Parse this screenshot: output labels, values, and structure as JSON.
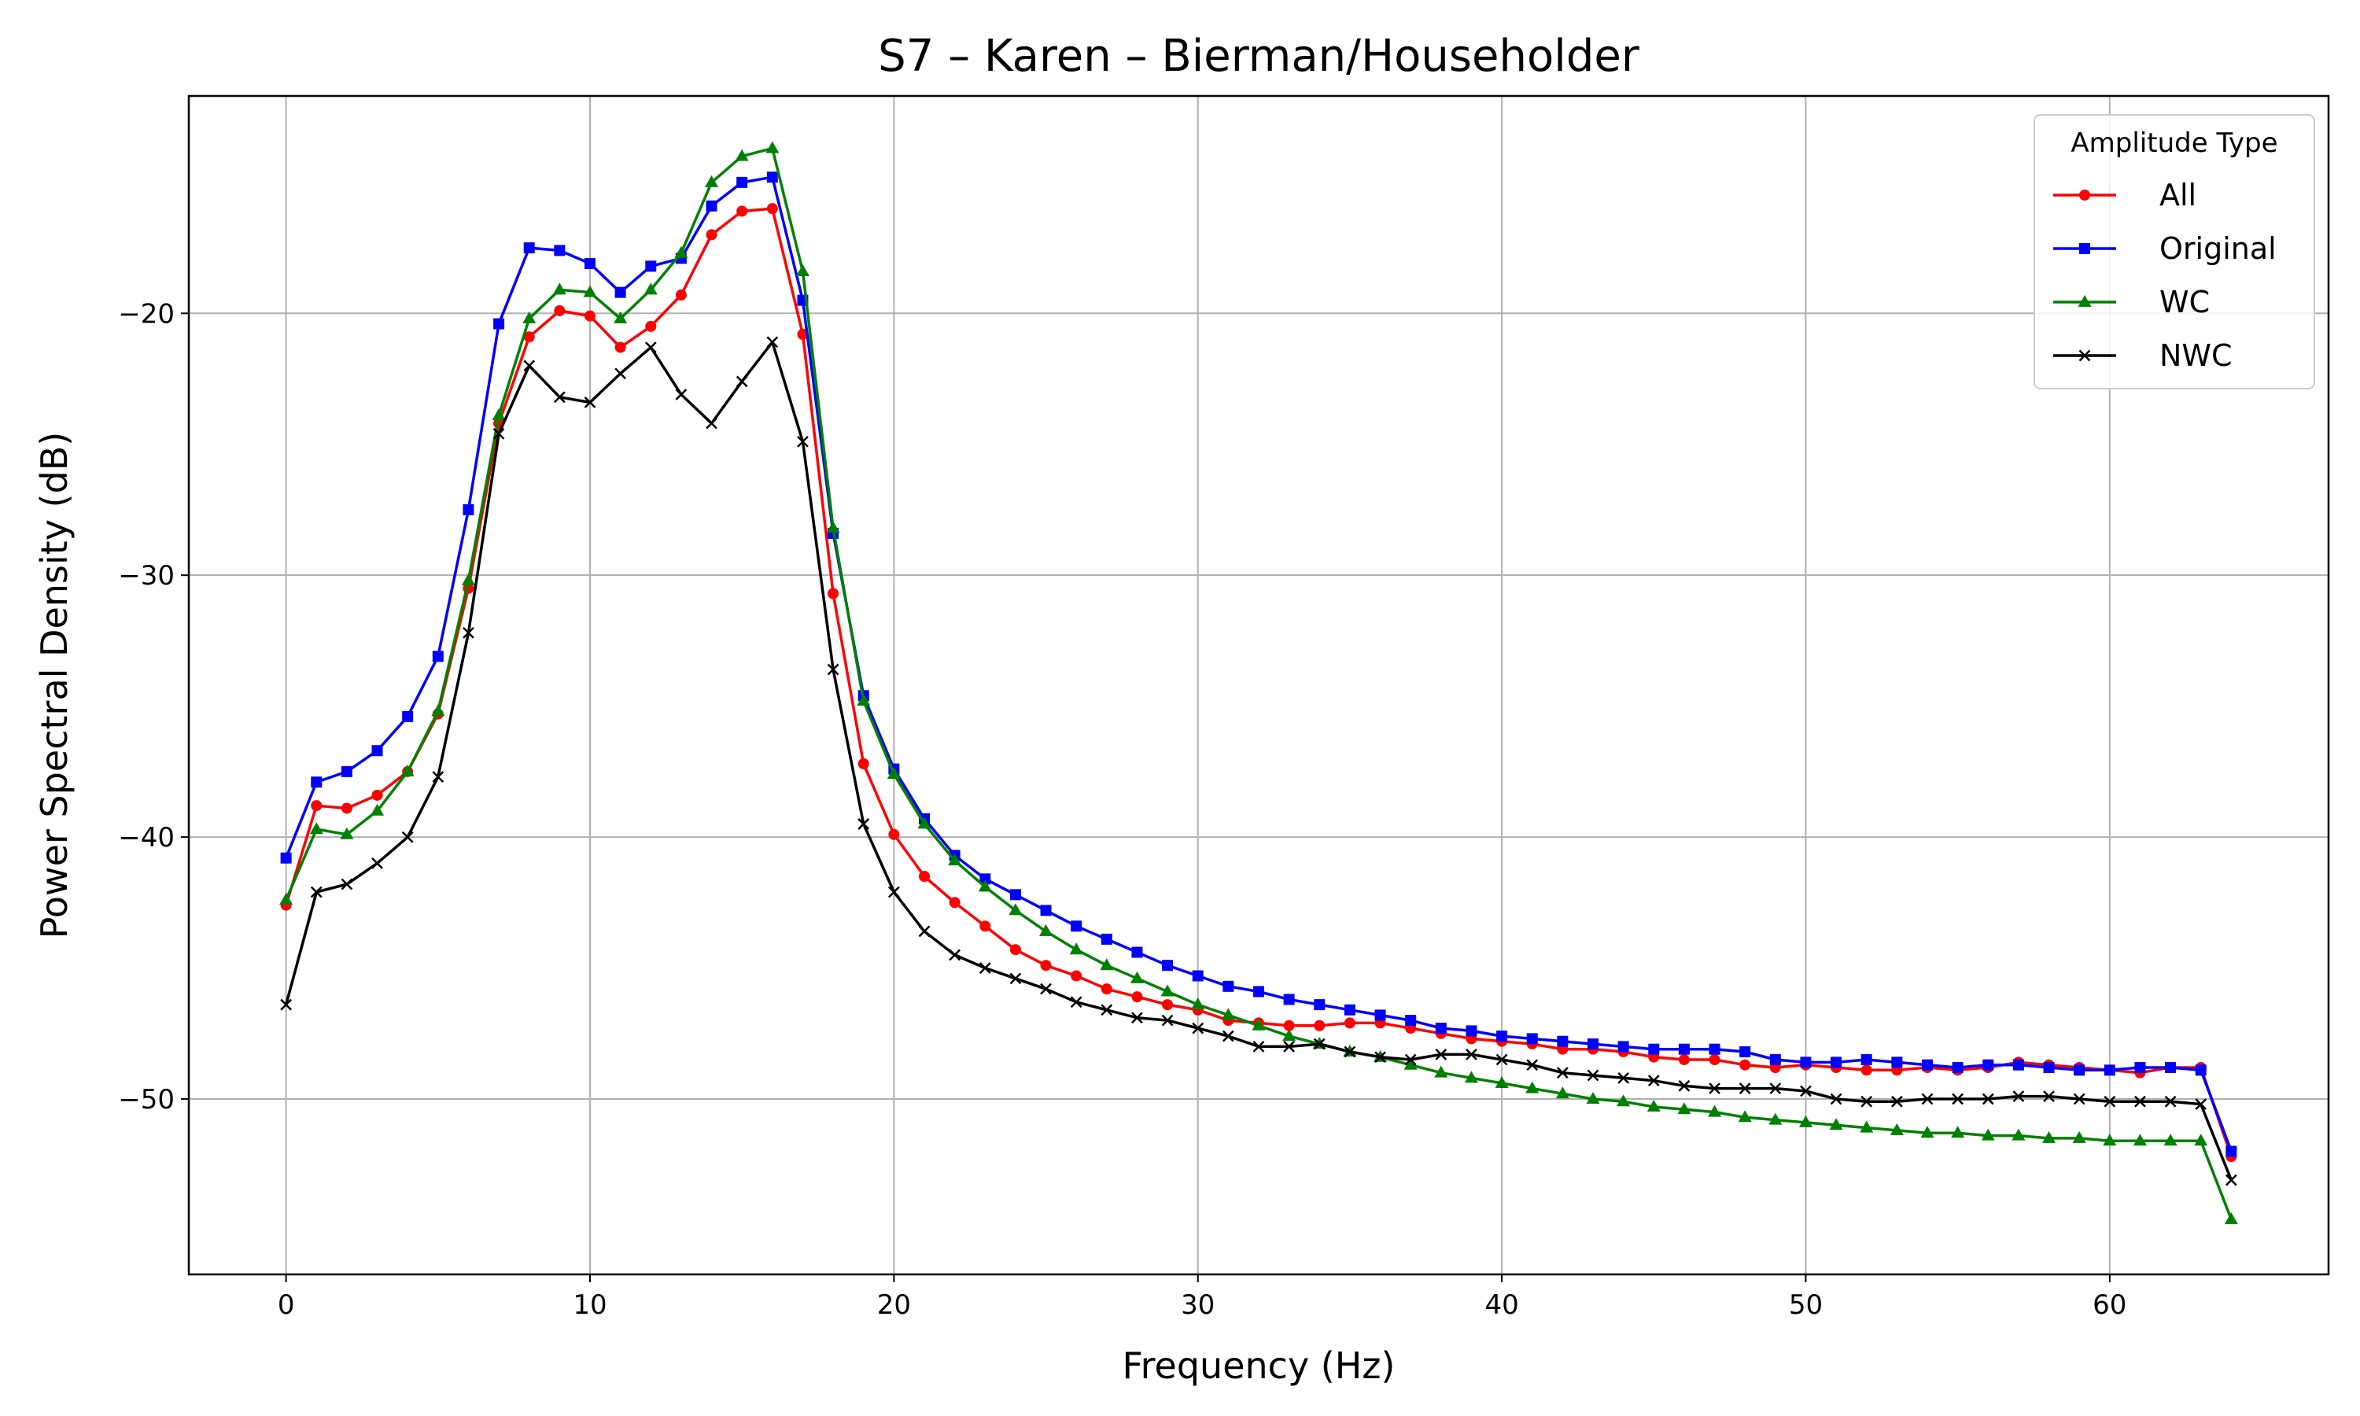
{
  "chart_data": {
    "type": "line",
    "title": "S7 – Karen – Bierman/Householder",
    "xlabel": "Frequency (Hz)",
    "ylabel": "Power Spectral Density (dB)",
    "xlim": [
      -3.2,
      67.2
    ],
    "ylim": [
      -56.7,
      -11.7
    ],
    "xticks": [
      0,
      10,
      20,
      30,
      40,
      50,
      60
    ],
    "yticks": [
      -50,
      -40,
      -30,
      -20
    ],
    "xtick_labels": [
      "0",
      "10",
      "20",
      "30",
      "40",
      "50",
      "60"
    ],
    "ytick_labels": [
      "−50",
      "−40",
      "−30",
      "−20"
    ],
    "grid": true,
    "legend": {
      "title": "Amplitude Type",
      "position": "top-right"
    },
    "x": [
      0,
      1,
      2,
      3,
      4,
      5,
      6,
      7,
      8,
      9,
      10,
      11,
      12,
      13,
      14,
      15,
      16,
      17,
      18,
      19,
      20,
      21,
      22,
      23,
      24,
      25,
      26,
      27,
      28,
      29,
      30,
      31,
      32,
      33,
      34,
      35,
      36,
      37,
      38,
      39,
      40,
      41,
      42,
      43,
      44,
      45,
      46,
      47,
      48,
      49,
      50,
      51,
      52,
      53,
      54,
      55,
      56,
      57,
      58,
      59,
      60,
      61,
      62,
      63,
      64
    ],
    "series": [
      {
        "name": "All",
        "color": "#ff0000",
        "marker": "circle",
        "values": [
          -42.6,
          -38.8,
          -38.9,
          -38.4,
          -37.5,
          -35.3,
          -30.5,
          -24.2,
          -20.9,
          -19.9,
          -20.1,
          -21.3,
          -20.5,
          -19.3,
          -17.0,
          -16.1,
          -16.0,
          -20.8,
          -30.7,
          -37.2,
          -39.9,
          -41.5,
          -42.5,
          -43.4,
          -44.3,
          -44.9,
          -45.3,
          -45.8,
          -46.1,
          -46.4,
          -46.6,
          -47.0,
          -47.1,
          -47.2,
          -47.2,
          -47.1,
          -47.1,
          -47.3,
          -47.5,
          -47.7,
          -47.8,
          -47.9,
          -48.1,
          -48.1,
          -48.2,
          -48.4,
          -48.5,
          -48.5,
          -48.7,
          -48.8,
          -48.7,
          -48.8,
          -48.9,
          -48.9,
          -48.8,
          -48.9,
          -48.8,
          -48.6,
          -48.7,
          -48.8,
          -48.9,
          -49.0,
          -48.8,
          -48.8,
          -52.2
        ]
      },
      {
        "name": "Original",
        "color": "#0000ff",
        "marker": "square",
        "values": [
          -40.8,
          -37.9,
          -37.5,
          -36.7,
          -35.4,
          -33.1,
          -27.5,
          -20.4,
          -17.5,
          -17.6,
          -18.1,
          -19.2,
          -18.2,
          -17.9,
          -15.9,
          -15.0,
          -14.8,
          -19.5,
          -28.4,
          -34.6,
          -37.4,
          -39.3,
          -40.7,
          -41.6,
          -42.2,
          -42.8,
          -43.4,
          -43.9,
          -44.4,
          -44.9,
          -45.3,
          -45.7,
          -45.9,
          -46.2,
          -46.4,
          -46.6,
          -46.8,
          -47.0,
          -47.3,
          -47.4,
          -47.6,
          -47.7,
          -47.8,
          -47.9,
          -48.0,
          -48.1,
          -48.1,
          -48.1,
          -48.2,
          -48.5,
          -48.6,
          -48.6,
          -48.5,
          -48.6,
          -48.7,
          -48.8,
          -48.7,
          -48.7,
          -48.8,
          -48.9,
          -48.9,
          -48.8,
          -48.8,
          -48.9,
          -52.0
        ]
      },
      {
        "name": "WC",
        "color": "#008000",
        "marker": "triangle",
        "values": [
          -42.4,
          -39.7,
          -39.9,
          -39.0,
          -37.5,
          -35.2,
          -30.2,
          -23.9,
          -20.2,
          -19.1,
          -19.2,
          -20.2,
          -19.1,
          -17.7,
          -15.0,
          -14.0,
          -13.7,
          -18.4,
          -28.2,
          -34.8,
          -37.6,
          -39.5,
          -40.9,
          -41.9,
          -42.8,
          -43.6,
          -44.3,
          -44.9,
          -45.4,
          -45.9,
          -46.4,
          -46.8,
          -47.2,
          -47.6,
          -47.9,
          -48.2,
          -48.4,
          -48.7,
          -49.0,
          -49.2,
          -49.4,
          -49.6,
          -49.8,
          -50.0,
          -50.1,
          -50.3,
          -50.4,
          -50.5,
          -50.7,
          -50.8,
          -50.9,
          -51.0,
          -51.1,
          -51.2,
          -51.3,
          -51.3,
          -51.4,
          -51.4,
          -51.5,
          -51.5,
          -51.6,
          -51.6,
          -51.6,
          -51.6,
          -54.6
        ]
      },
      {
        "name": "NWC",
        "color": "#000000",
        "marker": "x",
        "values": [
          -46.4,
          -42.1,
          -41.8,
          -41.0,
          -40.0,
          -37.7,
          -32.2,
          -24.6,
          -22.0,
          -23.2,
          -23.4,
          -22.3,
          -21.3,
          -23.1,
          -24.2,
          -22.6,
          -21.1,
          -24.9,
          -33.6,
          -39.5,
          -42.1,
          -43.6,
          -44.5,
          -45.0,
          -45.4,
          -45.8,
          -46.3,
          -46.6,
          -46.9,
          -47.0,
          -47.3,
          -47.6,
          -48.0,
          -48.0,
          -47.9,
          -48.2,
          -48.4,
          -48.5,
          -48.3,
          -48.3,
          -48.5,
          -48.7,
          -49.0,
          -49.1,
          -49.2,
          -49.3,
          -49.5,
          -49.6,
          -49.6,
          -49.6,
          -49.7,
          -50.0,
          -50.1,
          -50.1,
          -50.0,
          -50.0,
          -50.0,
          -49.9,
          -49.9,
          -50.0,
          -50.1,
          -50.1,
          -50.1,
          -50.2,
          -53.1
        ]
      }
    ]
  }
}
